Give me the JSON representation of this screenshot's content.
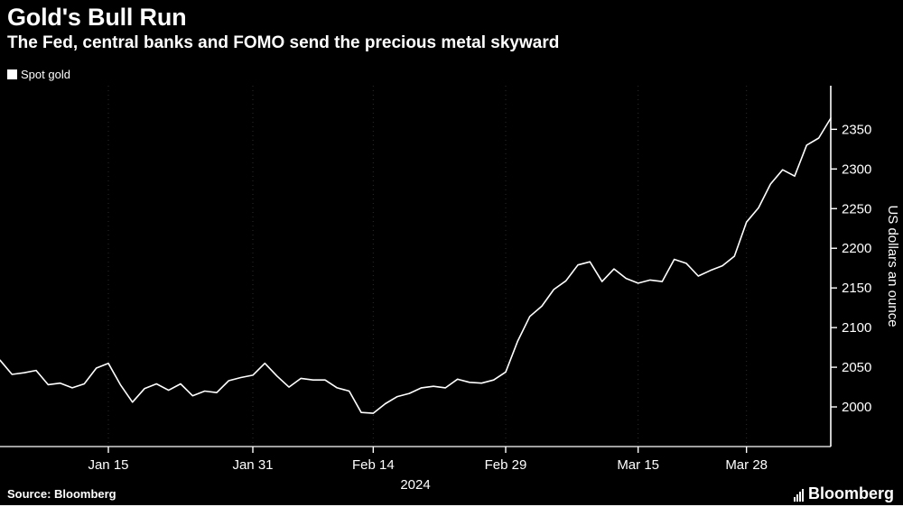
{
  "header": {
    "title": "Gold's Bull Run",
    "subtitle": "The Fed, central banks and FOMO send the precious metal skyward"
  },
  "legend": {
    "series_label": "Spot gold",
    "marker_color": "#ffffff"
  },
  "chart_data": {
    "type": "line",
    "title": "Gold's Bull Run",
    "series_name": "Spot gold",
    "ylabel": "US dollars an ounce",
    "x_axis_year": "2024",
    "ylim": [
      1950,
      2405
    ],
    "y_ticks": [
      2000,
      2050,
      2100,
      2150,
      2200,
      2250,
      2300,
      2350
    ],
    "x_ticks": [
      {
        "label": "Jan 15",
        "index": 9
      },
      {
        "label": "Jan 31",
        "index": 21
      },
      {
        "label": "Feb 14",
        "index": 31
      },
      {
        "label": "Feb 29",
        "index": 42
      },
      {
        "label": "Mar 15",
        "index": 53
      },
      {
        "label": "Mar 28",
        "index": 62
      }
    ],
    "dates": [
      "Jan 2",
      "Jan 3",
      "Jan 4",
      "Jan 5",
      "Jan 8",
      "Jan 9",
      "Jan 10",
      "Jan 11",
      "Jan 12",
      "Jan 15",
      "Jan 16",
      "Jan 17",
      "Jan 18",
      "Jan 19",
      "Jan 22",
      "Jan 23",
      "Jan 24",
      "Jan 25",
      "Jan 26",
      "Jan 29",
      "Jan 30",
      "Jan 31",
      "Feb 1",
      "Feb 2",
      "Feb 5",
      "Feb 6",
      "Feb 7",
      "Feb 8",
      "Feb 9",
      "Feb 12",
      "Feb 13",
      "Feb 14",
      "Feb 15",
      "Feb 16",
      "Feb 19",
      "Feb 20",
      "Feb 21",
      "Feb 22",
      "Feb 23",
      "Feb 26",
      "Feb 27",
      "Feb 28",
      "Feb 29",
      "Mar 1",
      "Mar 4",
      "Mar 5",
      "Mar 6",
      "Mar 7",
      "Mar 8",
      "Mar 11",
      "Mar 12",
      "Mar 13",
      "Mar 14",
      "Mar 15",
      "Mar 18",
      "Mar 19",
      "Mar 20",
      "Mar 21",
      "Mar 22",
      "Mar 25",
      "Mar 26",
      "Mar 27",
      "Mar 28",
      "Apr 1",
      "Apr 2",
      "Apr 3",
      "Apr 4",
      "Apr 5",
      "Apr 8",
      "Apr 9"
    ],
    "values": [
      2059,
      2041,
      2043,
      2046,
      2028,
      2030,
      2024,
      2029,
      2049,
      2055,
      2028,
      2006,
      2023,
      2029,
      2021,
      2029,
      2014,
      2020,
      2018,
      2033,
      2037,
      2040,
      2055,
      2039,
      2025,
      2036,
      2034,
      2034,
      2024,
      2020,
      1993,
      1992,
      2004,
      2013,
      2017,
      2024,
      2026,
      2024,
      2035,
      2031,
      2030,
      2034,
      2044,
      2083,
      2114,
      2127,
      2148,
      2159,
      2179,
      2183,
      2158,
      2174,
      2162,
      2156,
      2160,
      2158,
      2186,
      2181,
      2165,
      2172,
      2178,
      2190,
      2233,
      2251,
      2281,
      2299,
      2291,
      2330,
      2339,
      2364
    ],
    "line_color": "#ffffff",
    "axis_color": "#ffffff",
    "grid_color": "#2c2c2c",
    "background": "#000000",
    "legend_position": "top-left",
    "grid": "faint-vertical-dotted"
  },
  "footer": {
    "source": "Source:  Bloomberg",
    "brand": "Bloomberg"
  }
}
